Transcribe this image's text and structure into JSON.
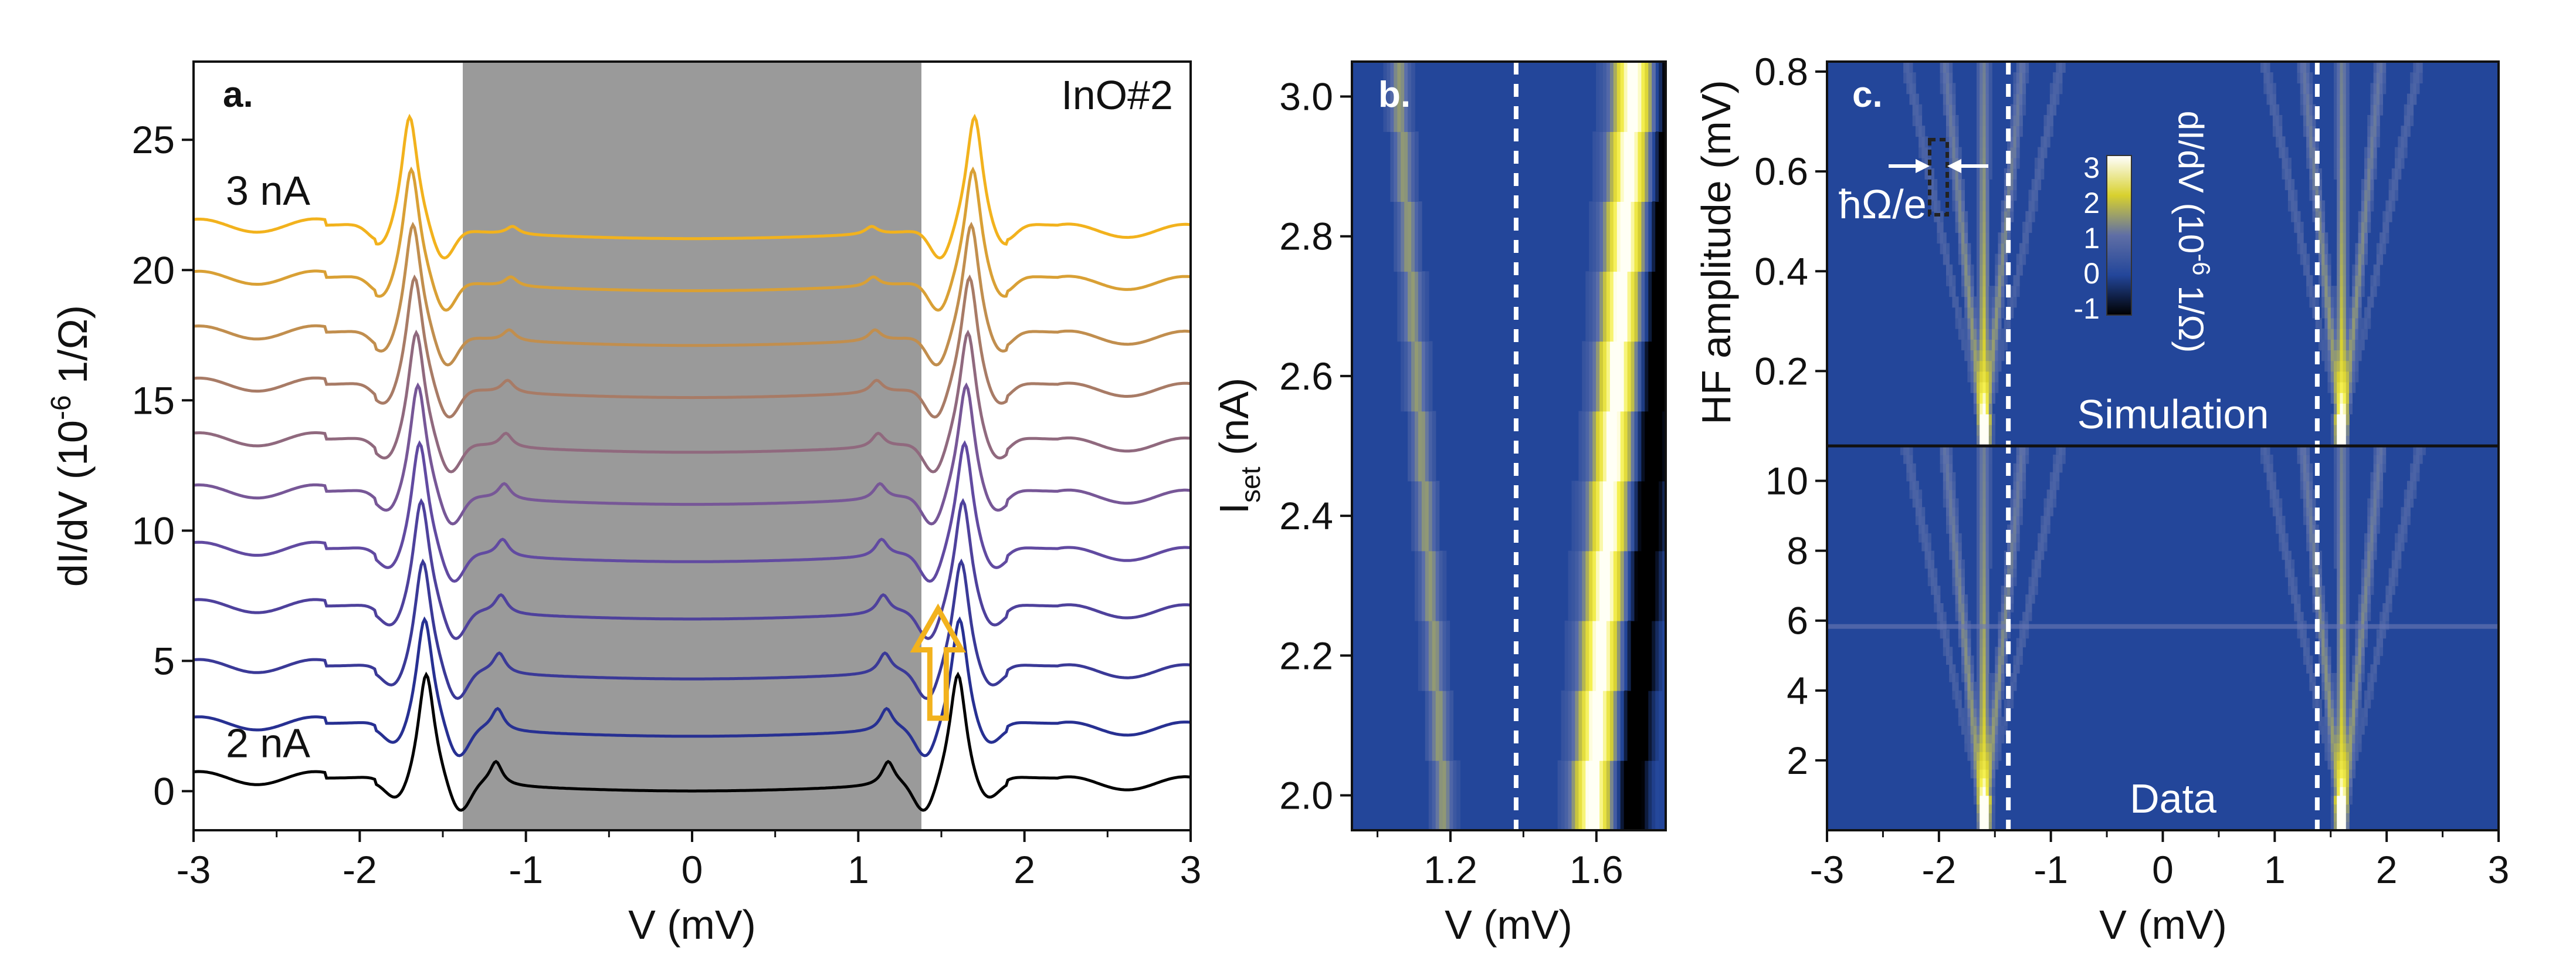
{
  "colors": {
    "gap_shade": "#9a9a9a",
    "map_background": "#23469a",
    "map_peak": "#f1ef3f",
    "curve_top": "#f2b21d",
    "curve_mid": "#6b4ea3",
    "curve_low": "#1d2c8f",
    "arrow": "#f2b21d",
    "dashed_line": "#ffffff"
  },
  "chart_data": [
    {
      "type": "line",
      "panel_label": "a.",
      "annotation": "InO#2",
      "xlabel": "V (mV)",
      "ylabel_text": "dI/dV (10",
      "ylabel_exp": "-6",
      "ylabel_unit": " 1/Ω)",
      "xlim": [
        -3,
        3
      ],
      "ylim": [
        -1.5,
        28
      ],
      "xticks": [
        "-3",
        "-2",
        "-1",
        "0",
        "1",
        "2",
        "3"
      ],
      "yticks": [
        "0",
        "5",
        "10",
        "15",
        "20",
        "25"
      ],
      "shaded_region": [
        -1.38,
        1.38
      ],
      "series_labels": {
        "top": "3 nA",
        "bottom": "2 nA"
      },
      "offsets": [
        0,
        2.1,
        4.3,
        6.6,
        8.8,
        11.0,
        13.0,
        15.1,
        17.1,
        19.2,
        21.2
      ],
      "peak_positions_mV": {
        "coherence_peak_low": 1.6,
        "coherence_peak_high": 1.7,
        "subgap_peak_low": 1.18,
        "subgap_peak_high": 1.08
      },
      "arrow_annotation": {
        "x_mV": 1.48,
        "from_y": 2.8,
        "to_y": 7.0
      }
    },
    {
      "type": "heatmap",
      "panel_label": "b.",
      "xlabel": "V (mV)",
      "ylabel_main": "I",
      "ylabel_sub": "set",
      "ylabel_unit": " (nA)",
      "xlim": [
        0.93,
        1.79
      ],
      "ylim": [
        1.95,
        3.05
      ],
      "xticks": [
        "1.2",
        "1.6"
      ],
      "yticks": [
        "2.0",
        "2.2",
        "2.4",
        "2.6",
        "2.8",
        "3.0"
      ],
      "dashed_line_x": 1.38
    },
    {
      "type": "heatmap",
      "panel_label": "c.",
      "xlabel": "V (mV)",
      "xlim": [
        -3,
        3
      ],
      "xticks": [
        "-3",
        "-2",
        "-1",
        "0",
        "1",
        "2",
        "3"
      ],
      "dashed_lines_x": [
        -1.38,
        1.38
      ],
      "top_panel": {
        "name": "Simulation",
        "ylabel": "HF amplitude (mV)",
        "ylim": [
          0.05,
          0.82
        ],
        "yticks": [
          "0.2",
          "0.4",
          "0.6",
          "0.8"
        ]
      },
      "bottom_panel": {
        "name": "Data",
        "ylim": [
          0,
          11
        ],
        "yticks": [
          "2",
          "4",
          "6",
          "8",
          "10"
        ],
        "glitch_row": 5.8
      },
      "spacing_annotation": "ħΩ/e",
      "colorbar": {
        "ticks": [
          "3",
          "2",
          "1",
          "0",
          "-1"
        ],
        "label_text": "dI/dV (10",
        "label_exp": "-6",
        "label_unit": " 1/Ω)"
      }
    }
  ]
}
